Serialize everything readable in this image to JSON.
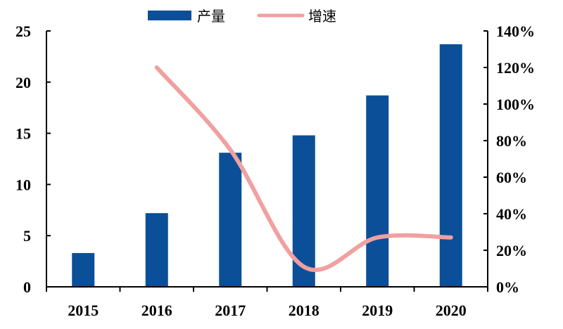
{
  "chart_data": {
    "type": "bar",
    "categories": [
      "2015",
      "2016",
      "2017",
      "2018",
      "2019",
      "2020"
    ],
    "series": [
      {
        "name": "产量",
        "type": "bar",
        "axis": "left",
        "color": "#0b4f99",
        "values": [
          3.3,
          7.2,
          13.1,
          14.8,
          18.7,
          23.7
        ]
      },
      {
        "name": "增速",
        "type": "line",
        "axis": "right",
        "smooth": true,
        "color": "#f0a0a0",
        "values": [
          null,
          120,
          75,
          11,
          27,
          27
        ]
      }
    ],
    "left_axis": {
      "ylim": [
        0,
        25
      ],
      "ticks": [
        "0",
        "5",
        "10",
        "15",
        "20",
        "25"
      ]
    },
    "right_axis": {
      "ylim": [
        0,
        140
      ],
      "ticks": [
        "0%",
        "20%",
        "40%",
        "60%",
        "80%",
        "100%",
        "120%",
        "140%"
      ]
    },
    "legend": "top",
    "grid": false
  }
}
